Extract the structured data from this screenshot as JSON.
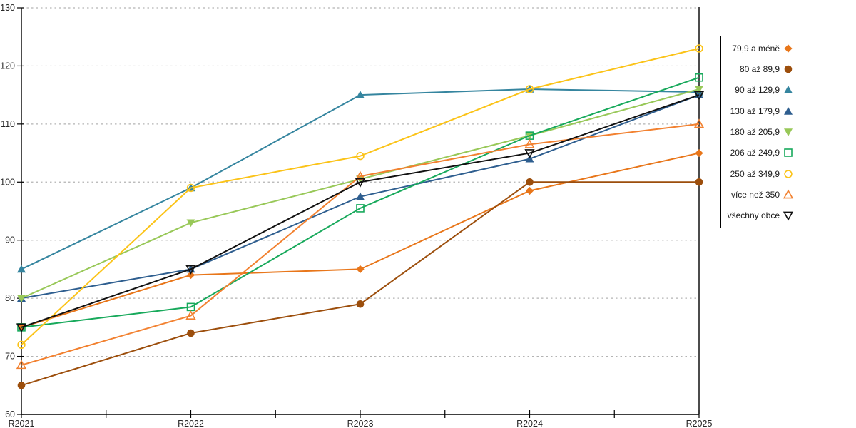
{
  "chart_data": {
    "type": "line",
    "title": "",
    "xlabel": "",
    "ylabel": "",
    "x_categories": [
      "R2021",
      "R2022",
      "R2023",
      "R2024",
      "R2025"
    ],
    "ylim": [
      60,
      130
    ],
    "ytick_step": 10,
    "grid": "horizontal-dashed",
    "legend_position": "right",
    "series": [
      {
        "name": "79,9 a méně",
        "color": "#E8761A",
        "marker": "diamond-filled",
        "values": [
          75,
          84,
          85,
          98.5,
          105
        ]
      },
      {
        "name": "80 až 89,9",
        "color": "#9C4E0C",
        "marker": "circle-filled",
        "values": [
          65,
          74,
          79,
          100,
          100
        ]
      },
      {
        "name": "90 až 129,9",
        "color": "#35859F",
        "marker": "triangle-up-filled",
        "values": [
          85,
          99,
          115,
          116,
          115.5
        ]
      },
      {
        "name": "130 až 179,9",
        "color": "#2E5E8F",
        "marker": "triangle-up-filled",
        "values": [
          80,
          85,
          97.5,
          104,
          115
        ]
      },
      {
        "name": "180 až 205,9",
        "color": "#98C858",
        "marker": "triangle-down-filled",
        "values": [
          80,
          93,
          100.5,
          108,
          116
        ]
      },
      {
        "name": "206 až 249,9",
        "color": "#17A95B",
        "marker": "square-open",
        "values": [
          75,
          78.5,
          95.5,
          108,
          118
        ]
      },
      {
        "name": "250 až 349,9",
        "color": "#FBC318",
        "marker": "circle-open",
        "values": [
          72,
          99,
          104.5,
          116,
          123
        ]
      },
      {
        "name": "více než 350",
        "color": "#F28130",
        "marker": "triangle-up-open",
        "values": [
          68.5,
          77,
          101,
          106.5,
          110
        ]
      },
      {
        "name": "všechny obce",
        "color": "#111111",
        "marker": "triangle-down-open",
        "values": [
          75,
          85,
          100,
          105,
          115
        ]
      }
    ],
    "axis_color": "#000000",
    "gridline_color": "#b3b3b3",
    "text_color": "#262626"
  }
}
